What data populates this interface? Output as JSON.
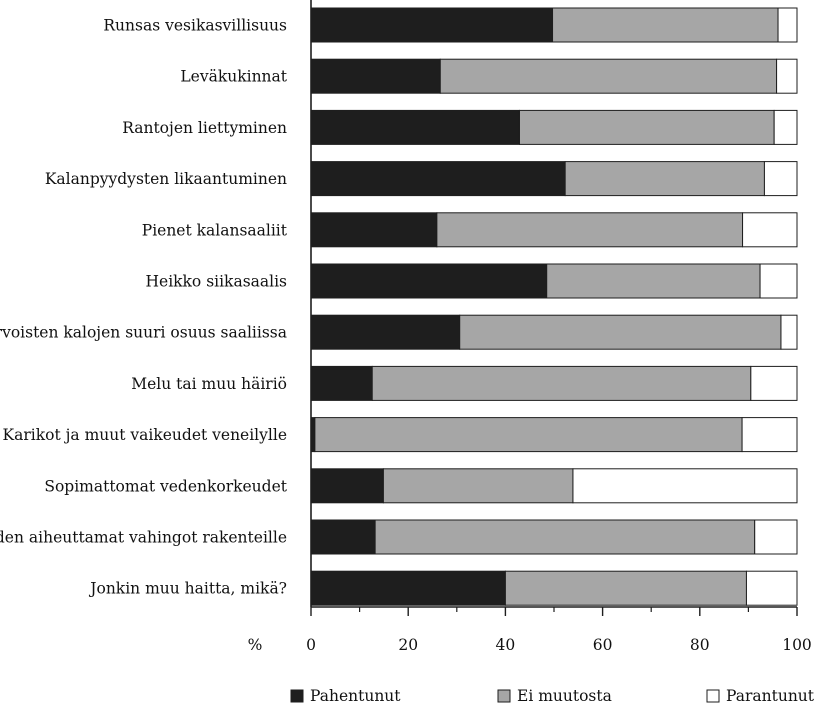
{
  "chart_data": {
    "type": "bar",
    "orientation": "horizontal",
    "stacked": true,
    "categories": [
      "Runsas vesikasvillisuus",
      "Leväkukinnat",
      "Rantojen liettyminen",
      "Kalanpyydysten likaantuminen",
      "Pienet kalansaaliit",
      "Heikko siikasaalis",
      "Vähäarvoisten kalojen suuri osuus saaliissa",
      "Melu tai muu häiriö",
      "Karikot ja muut vaikeudet veneilylle",
      "Sopimattomat vedenkorkeudet",
      "Jäiden aiheuttamat vahingot rakenteille",
      "Jonkin muu haitta, mikä?"
    ],
    "series": [
      {
        "name": "Pahentunut",
        "color": "#1e1e1e",
        "values": [
          49.7,
          26.6,
          42.9,
          52.3,
          25.9,
          48.5,
          30.6,
          12.6,
          0.8,
          14.9,
          13.2,
          40.0
        ]
      },
      {
        "name": "Ei muutosta",
        "color": "#a6a6a6",
        "values": [
          46.4,
          69.2,
          52.4,
          41.0,
          62.9,
          43.9,
          66.1,
          77.9,
          87.9,
          39.0,
          78.1,
          49.6
        ]
      },
      {
        "name": "Parantunut",
        "color": "#ffffff",
        "values": [
          3.9,
          4.2,
          4.7,
          6.7,
          11.2,
          7.6,
          3.3,
          9.5,
          11.3,
          46.1,
          8.7,
          10.4
        ]
      }
    ],
    "x_ticks": [
      "0",
      "20",
      "40",
      "60",
      "80",
      "100"
    ],
    "xlim": [
      0,
      100
    ],
    "x_unit": "%",
    "grid": false,
    "legend_position": "bottom"
  }
}
